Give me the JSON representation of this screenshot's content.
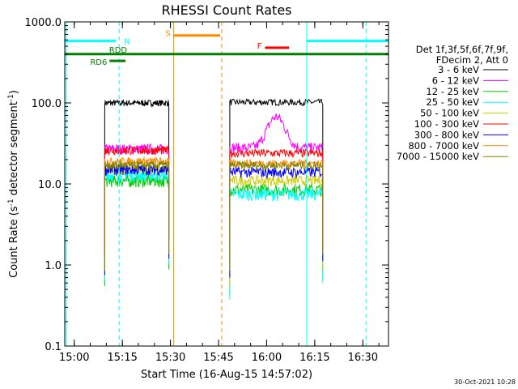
{
  "chart_data": {
    "type": "line",
    "title": "RHESSI Count Rates",
    "xlabel": "Start Time (16-Aug-15 14:57:02)",
    "ylabel_main": "Count Rate (s",
    "ylabel_sup1": "-1",
    "ylabel_mid": " detector segment",
    "ylabel_sup2": "-1",
    "ylabel_end": ")",
    "x_scale": "time",
    "x_range": [
      "14:57:02",
      "16:38:00"
    ],
    "x_ticks": [
      "15:00",
      "15:15",
      "15:30",
      "15:45",
      "16:00",
      "16:15",
      "16:30"
    ],
    "y_scale": "log",
    "y_range": [
      0.1,
      1000.0
    ],
    "y_ticks": [
      "0.1",
      "1.0",
      "10.0",
      "100.0",
      "1000.0"
    ],
    "legend": {
      "placement": "right",
      "header_line1": "Det 1f,3f,5f,6f,7f,9f,",
      "header_line2": "FDecim 2, Att 0"
    },
    "data_segments": [
      {
        "start": "15:09:30",
        "end": "15:29:30"
      },
      {
        "start": "15:48:30",
        "end": "16:17:30"
      }
    ],
    "series": [
      {
        "name": "3 - 6 keV",
        "color": "#000000",
        "level_seg1": 100,
        "level_seg2": 102,
        "noise": 0.03,
        "bump": 0
      },
      {
        "name": "6 - 12 keV",
        "color": "#ff00ff",
        "level_seg1": 27,
        "level_seg2": 28,
        "noise": 0.05,
        "bump": 0.14
      },
      {
        "name": "12 - 25 keV",
        "color": "#00cc00",
        "level_seg1": 11,
        "level_seg2": 8.5,
        "noise": 0.06,
        "bump": 0
      },
      {
        "name": "25 - 50 keV",
        "color": "#00ffff",
        "level_seg1": 13,
        "level_seg2": 7.5,
        "noise": 0.06,
        "bump": 0
      },
      {
        "name": "50 - 100 keV",
        "color": "#cccc00",
        "level_seg1": 15,
        "level_seg2": 11,
        "noise": 0.05,
        "bump": 0
      },
      {
        "name": "100 - 300 keV",
        "color": "#ff0000",
        "level_seg1": 26,
        "level_seg2": 24,
        "noise": 0.04,
        "bump": 0
      },
      {
        "name": "300 - 800 keV",
        "color": "#0000ff",
        "level_seg1": 15,
        "level_seg2": 14,
        "noise": 0.05,
        "bump": 0
      },
      {
        "name": "800 - 7000 keV",
        "color": "#ff8c00",
        "level_seg1": 19,
        "level_seg2": 18,
        "noise": 0.04,
        "bump": 0
      },
      {
        "name": "7000 - 15000 keV",
        "color": "#808000",
        "level_seg1": 17,
        "level_seg2": 17,
        "noise": 0.04,
        "bump": 0
      }
    ],
    "vertical_markers": [
      {
        "time": "14:57:30",
        "color": "#00ffff",
        "style": "solid"
      },
      {
        "time": "15:14:00",
        "color": "#00ffff",
        "style": "dashed"
      },
      {
        "time": "15:31:00",
        "color": "#ff8c00",
        "style": "solid"
      },
      {
        "time": "15:46:00",
        "color": "#ff8c00",
        "style": "dashed"
      },
      {
        "time": "16:12:30",
        "color": "#00ffff",
        "style": "solid"
      },
      {
        "time": "16:31:00",
        "color": "#00ffff",
        "style": "dashed"
      }
    ],
    "flags": [
      {
        "label": "N",
        "color": "#00ffff",
        "bars": [
          {
            "start": "14:57:00",
            "end": "15:13:00"
          },
          {
            "start": "16:12:30",
            "end": "16:38:00"
          }
        ],
        "level": 580
      },
      {
        "label": "S",
        "color": "#ff8c00",
        "bars": [
          {
            "start": "15:31:00",
            "end": "15:45:30"
          }
        ],
        "level": 680
      },
      {
        "label": "F",
        "color": "#ff0000",
        "bars": [
          {
            "start": "15:59:30",
            "end": "16:07:00"
          }
        ],
        "level": 480
      },
      {
        "label": "RDD",
        "color": "#008000",
        "bars": [
          {
            "start": "14:57:00",
            "end": "16:38:00"
          }
        ],
        "level": 400
      },
      {
        "label": "RD6",
        "color": "#008000",
        "bars": [
          {
            "start": "15:11:00",
            "end": "15:16:00"
          }
        ],
        "level": 330
      }
    ]
  },
  "timestamp_stamp": "30-Oct-2021 10:28"
}
